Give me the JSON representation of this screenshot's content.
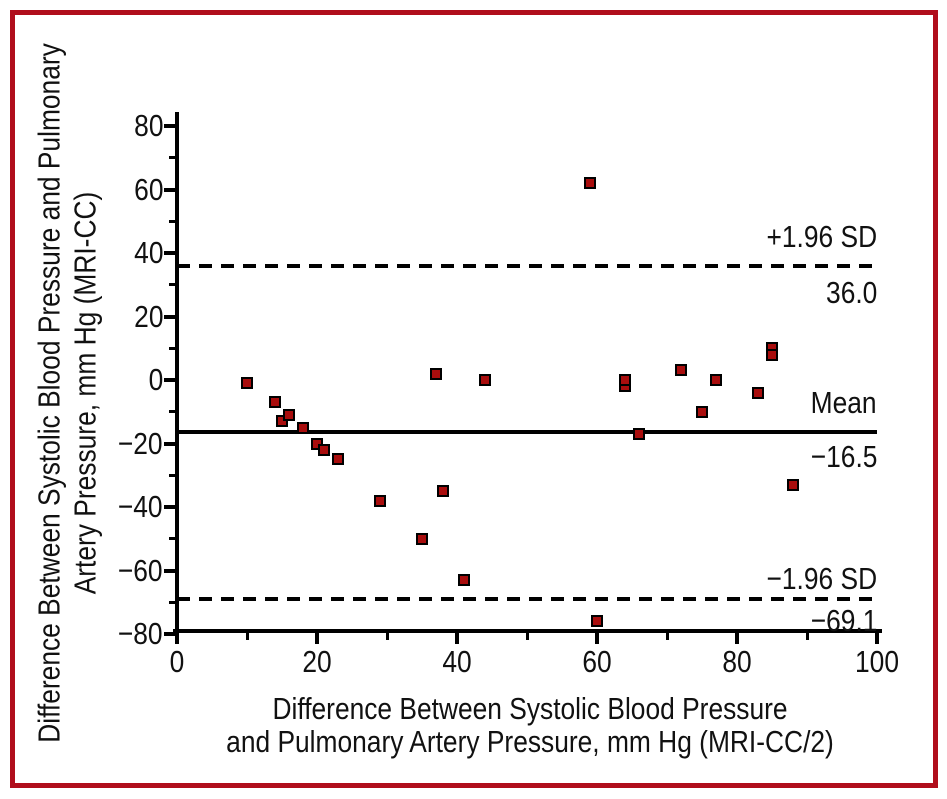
{
  "figure": {
    "border_color": "#b00e1c",
    "background_color": "#ffffff"
  },
  "chart_data": {
    "type": "scatter",
    "xlabel_line1": "Difference Between Systolic Blood Pressure",
    "xlabel_line2": "and Pulmonary Artery Pressure, mm Hg (MRI-CC/2)",
    "ylabel_line1": "Difference Between Systolic Blood Pressure and Pulmonary",
    "ylabel_line2": "Artery Pressure, mm Hg (MRI-CC)",
    "xlim": [
      0,
      100
    ],
    "ylim": [
      -80,
      80
    ],
    "grid": "off",
    "x_major_ticks": [
      {
        "v": 0,
        "label": "0"
      },
      {
        "v": 20,
        "label": "20"
      },
      {
        "v": 40,
        "label": "40"
      },
      {
        "v": 60,
        "label": "60"
      },
      {
        "v": 80,
        "label": "80"
      },
      {
        "v": 100,
        "label": "100"
      }
    ],
    "x_minor_ticks": [
      10,
      30,
      50,
      70,
      90
    ],
    "y_major_ticks": [
      {
        "v": 80,
        "label": "80"
      },
      {
        "v": 60,
        "label": "60"
      },
      {
        "v": 40,
        "label": "40"
      },
      {
        "v": 20,
        "label": "20"
      },
      {
        "v": 0,
        "label": "0"
      },
      {
        "v": -20,
        "label": "−20"
      },
      {
        "v": -40,
        "label": "−40"
      },
      {
        "v": -60,
        "label": "−60"
      },
      {
        "v": -80,
        "label": "−80"
      }
    ],
    "y_minor_ticks": [
      70,
      50,
      30,
      10,
      -10,
      -30,
      -50,
      -70
    ],
    "marker": {
      "shape": "square",
      "fill": "#a90d0d",
      "edge": "#000000"
    },
    "points": [
      [
        10,
        -1
      ],
      [
        14,
        -7
      ],
      [
        15,
        -13
      ],
      [
        16,
        -11
      ],
      [
        18,
        -15
      ],
      [
        20,
        -20
      ],
      [
        21,
        -22
      ],
      [
        23,
        -25
      ],
      [
        29,
        -38
      ],
      [
        35,
        -50
      ],
      [
        38,
        -35
      ],
      [
        37,
        2
      ],
      [
        41,
        -63
      ],
      [
        44,
        0
      ],
      [
        59,
        62
      ],
      [
        60,
        -76
      ],
      [
        64,
        -2
      ],
      [
        64,
        0
      ],
      [
        66,
        -17
      ],
      [
        72,
        3
      ],
      [
        75,
        -10
      ],
      [
        77,
        0
      ],
      [
        83,
        -4
      ],
      [
        85,
        10
      ],
      [
        85,
        8
      ],
      [
        88,
        -33
      ]
    ],
    "reference_lines": [
      {
        "name": "upper-loa",
        "style": "dashed",
        "value": 36.0,
        "label": "+1.96 SD",
        "value_label": "36.0"
      },
      {
        "name": "mean",
        "style": "solid",
        "value": -16.5,
        "label": "Mean",
        "value_label": "−16.5"
      },
      {
        "name": "lower-loa",
        "style": "dashed",
        "value": -69.1,
        "label": "−1.96 SD",
        "value_label": "−69.1"
      }
    ]
  }
}
